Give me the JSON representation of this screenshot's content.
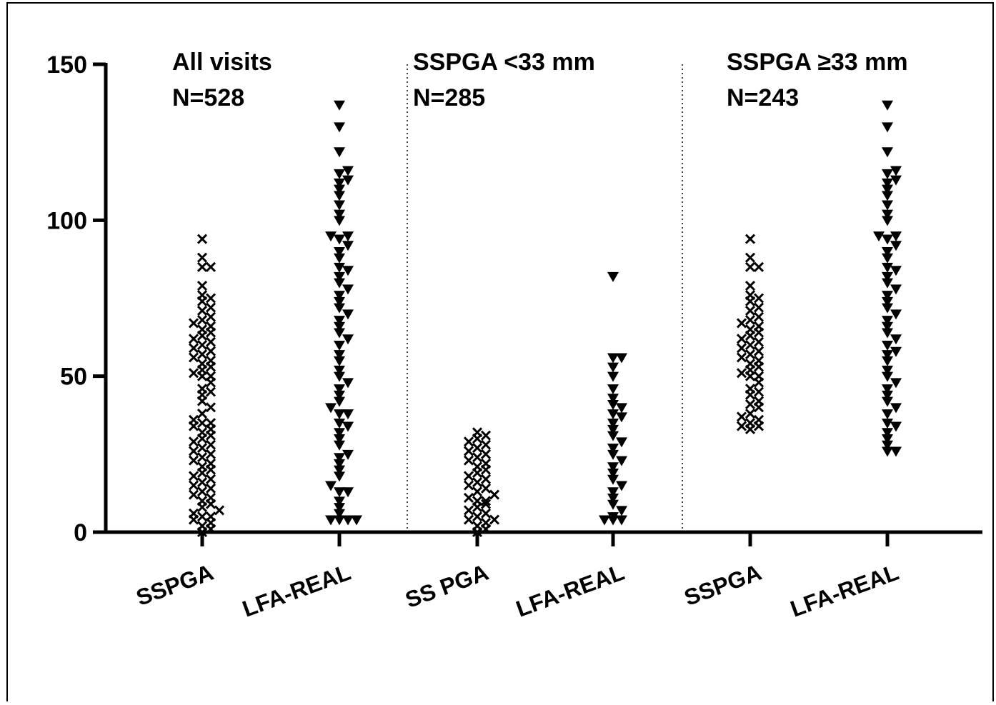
{
  "chart_data": {
    "type": "strip",
    "categories": [
      "SSPGA",
      "LFA-REAL",
      "SS PGA",
      "LFA-REAL",
      "SSPGA",
      "LFA-REAL"
    ],
    "panels": [
      {
        "label": "All visits",
        "n": "N=528"
      },
      {
        "label": "SSPGA <33 mm",
        "n": "N=285"
      },
      {
        "label": "SSPGA ≥33 mm",
        "n": "N=243"
      }
    ],
    "ylim": [
      0,
      150
    ],
    "yticks": [
      0,
      50,
      100,
      150
    ],
    "color": "#000000",
    "series": [
      {
        "marker": "x",
        "values": [
          0,
          1,
          2,
          3,
          4,
          5,
          5,
          6,
          7,
          8,
          9,
          10,
          11,
          12,
          13,
          14,
          15,
          16,
          17,
          18,
          19,
          20,
          21,
          22,
          23,
          24,
          25,
          26,
          27,
          28,
          29,
          30,
          31,
          32,
          33,
          34,
          35,
          35,
          36,
          38,
          40,
          42,
          44,
          45,
          46,
          48,
          50,
          50,
          51,
          52,
          53,
          54,
          55,
          56,
          57,
          58,
          59,
          60,
          61,
          62,
          63,
          64,
          65,
          66,
          67,
          68,
          69,
          71,
          72,
          74,
          75,
          76,
          79,
          85,
          85,
          88,
          94
        ]
      },
      {
        "marker": "triangle-down",
        "values": [
          4,
          4,
          4,
          4,
          6,
          8,
          10,
          13,
          13,
          15,
          18,
          20,
          22,
          24,
          25,
          28,
          30,
          32,
          34,
          35,
          38,
          38,
          40,
          42,
          44,
          46,
          48,
          50,
          52,
          55,
          57,
          60,
          62,
          64,
          66,
          68,
          70,
          72,
          74,
          76,
          78,
          80,
          82,
          84,
          85,
          88,
          90,
          92,
          94,
          95,
          95,
          100,
          102,
          105,
          108,
          110,
          112,
          113,
          115,
          116,
          122,
          130,
          137
        ]
      },
      {
        "marker": "x",
        "values": [
          0,
          1,
          2,
          3,
          4,
          4,
          5,
          6,
          7,
          8,
          9,
          10,
          10,
          11,
          12,
          13,
          14,
          15,
          16,
          17,
          18,
          19,
          20,
          21,
          22,
          23,
          24,
          25,
          26,
          27,
          28,
          29,
          30,
          31,
          32
        ]
      },
      {
        "marker": "triangle-down",
        "values": [
          4,
          4,
          4,
          5,
          7,
          9,
          11,
          13,
          15,
          17,
          19,
          21,
          23,
          25,
          27,
          29,
          31,
          33,
          35,
          37,
          38,
          40,
          41,
          43,
          46,
          50,
          53,
          56,
          56,
          82
        ]
      },
      {
        "marker": "x",
        "values": [
          33,
          34,
          34,
          35,
          36,
          37,
          38,
          40,
          41,
          42,
          44,
          45,
          46,
          48,
          50,
          50,
          51,
          52,
          53,
          54,
          55,
          56,
          57,
          58,
          59,
          60,
          61,
          62,
          63,
          64,
          65,
          66,
          67,
          68,
          69,
          71,
          72,
          74,
          75,
          76,
          79,
          85,
          85,
          88,
          94
        ]
      },
      {
        "marker": "triangle-down",
        "values": [
          26,
          26,
          28,
          30,
          32,
          34,
          35,
          38,
          40,
          42,
          44,
          46,
          48,
          50,
          52,
          55,
          57,
          58,
          60,
          62,
          64,
          66,
          68,
          70,
          72,
          74,
          76,
          78,
          80,
          82,
          84,
          85,
          88,
          90,
          92,
          94,
          95,
          95,
          100,
          102,
          105,
          108,
          110,
          112,
          113,
          115,
          116,
          122,
          130,
          137
        ]
      }
    ]
  }
}
